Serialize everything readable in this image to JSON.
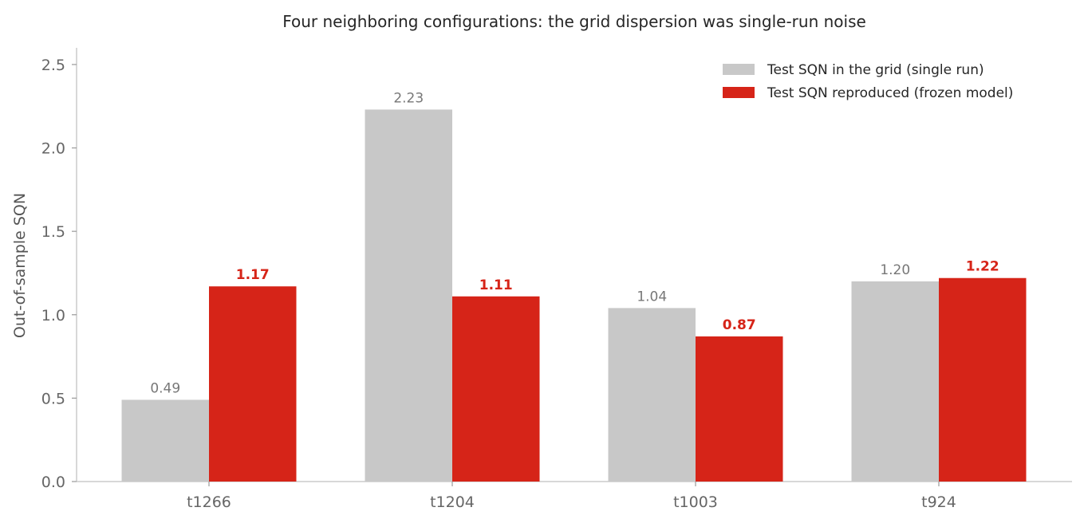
{
  "chart_data": {
    "type": "bar",
    "title": "Four neighboring configurations: the grid dispersion was single-run noise",
    "xlabel": "",
    "ylabel": "Out-of-sample SQN",
    "categories": [
      "t1266",
      "t1204",
      "t1003",
      "t924"
    ],
    "ylim": [
      0,
      2.6
    ],
    "yticks": [
      0.0,
      0.5,
      1.0,
      1.5,
      2.0,
      2.5
    ],
    "ytick_labels": [
      "0.0",
      "0.5",
      "1.0",
      "1.5",
      "2.0",
      "2.5"
    ],
    "grid": false,
    "legend_position": "top-right",
    "series": [
      {
        "name": "Test SQN in the grid (single run)",
        "color": "#c8c8c8",
        "values": [
          0.49,
          2.23,
          1.04,
          1.2
        ],
        "labels": [
          "0.49",
          "2.23",
          "1.04",
          "1.20"
        ]
      },
      {
        "name": "Test SQN reproduced (frozen model)",
        "color": "#d62418",
        "values": [
          1.17,
          1.11,
          0.87,
          1.22
        ],
        "labels": [
          "1.17",
          "1.11",
          "0.87",
          "1.22"
        ]
      }
    ]
  }
}
